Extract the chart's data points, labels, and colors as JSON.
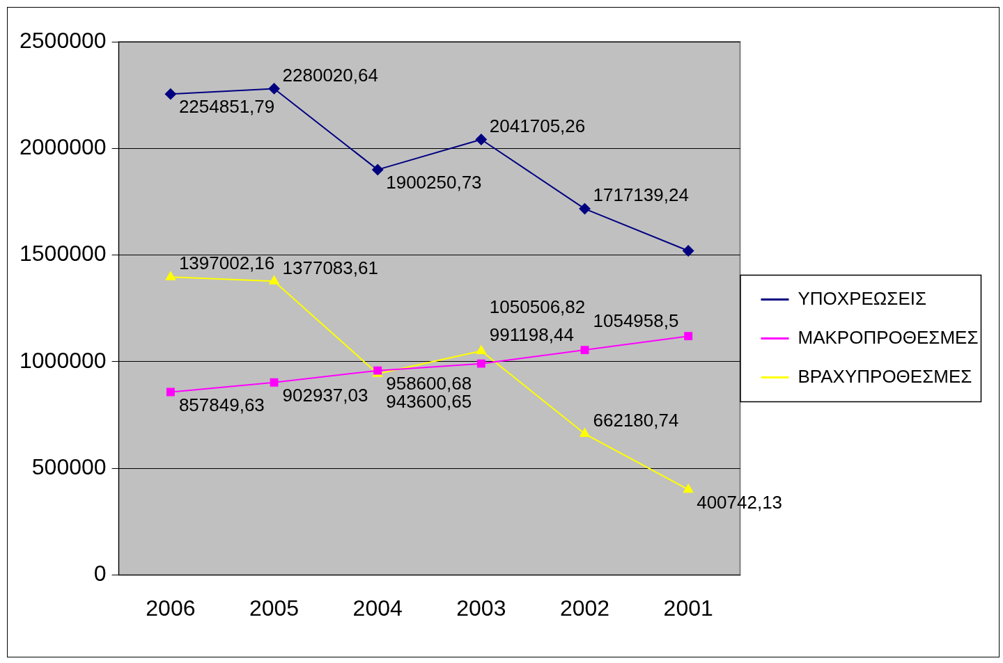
{
  "chart_data": {
    "type": "line",
    "categories": [
      "2006",
      "2005",
      "2004",
      "2003",
      "2002",
      "2001"
    ],
    "ylim": [
      0,
      2500000
    ],
    "yticks": [
      0,
      500000,
      1000000,
      1500000,
      2000000,
      2500000
    ],
    "grid": "y",
    "legend": "right",
    "data_labels": true,
    "series": [
      {
        "name": "ΥΠΟΧΡΕΩΣΕΙΣ",
        "color": "#000080",
        "marker": "diamond",
        "values": [
          2254851.79,
          2280020.64,
          1900250.73,
          2041705.26,
          1717139.24,
          1520000
        ],
        "value_labels": [
          "2254851,79",
          "2280020,64",
          "1900250,73",
          "2041705,26",
          "1717139,24",
          null
        ]
      },
      {
        "name": "ΜΑΚΡΟΠΡΟΘΕΣΜΕΣ",
        "color": "#ff00ff",
        "marker": "square",
        "values": [
          857849.63,
          902937.03,
          958600.68,
          991198.44,
          1054958.5,
          1120000
        ],
        "value_labels": [
          "857849,63",
          "902937,03",
          "958600,68",
          "991198,44",
          "1054958,5",
          null
        ]
      },
      {
        "name": "ΒΡΑΧΥΠΡΟΘΕΣΜΕΣ",
        "color": "#ffff00",
        "marker": "triangle",
        "values": [
          1397002.16,
          1377083.61,
          943600.65,
          1050506.82,
          662180.74,
          400742.13
        ],
        "value_labels": [
          "1397002,16",
          "1377083,61",
          "943600,65",
          "1050506,82",
          "662180,74",
          "400742,13"
        ]
      }
    ]
  }
}
